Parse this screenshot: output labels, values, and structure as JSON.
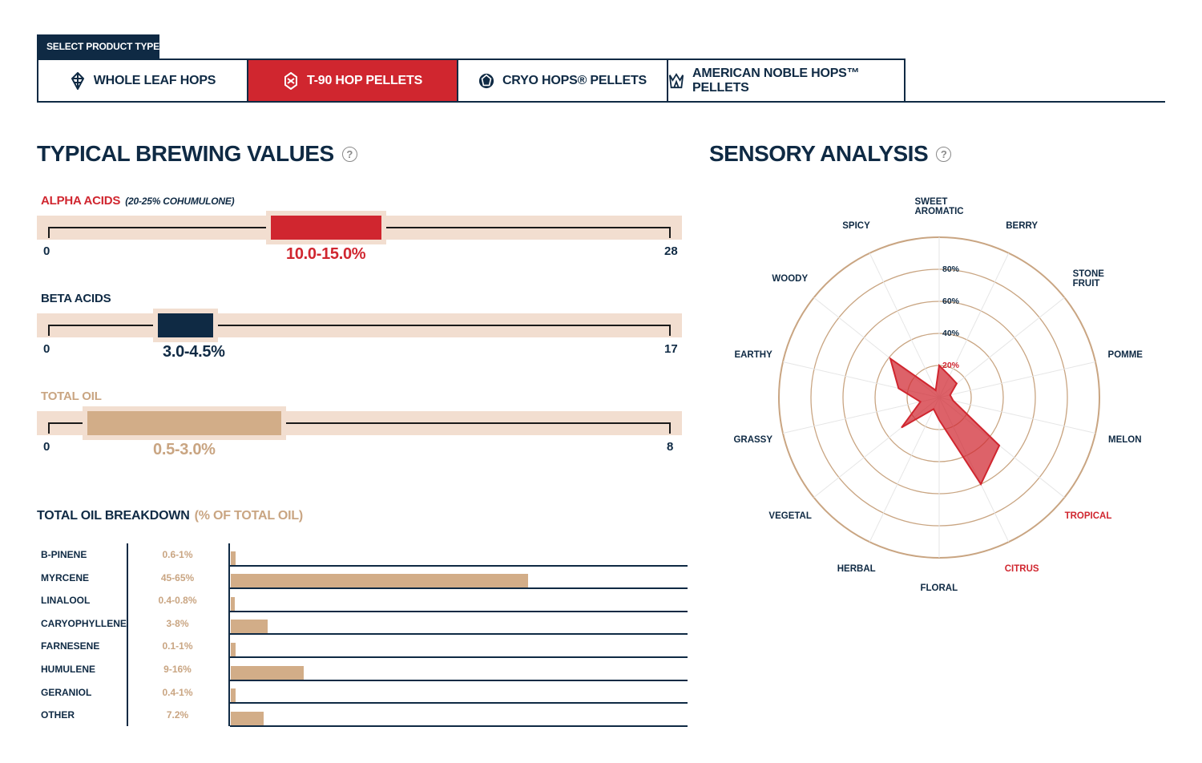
{
  "tabs": {
    "header": "SELECT PRODUCT TYPE",
    "items": [
      {
        "label": "WHOLE LEAF HOPS",
        "icon": "hop-cone-icon",
        "active": false
      },
      {
        "label": "T-90 HOP PELLETS",
        "icon": "pellet-icon",
        "active": true
      },
      {
        "label": "CRYO HOPS® PELLETS",
        "icon": "cryo-icon",
        "active": false
      },
      {
        "label": "AMERICAN NOBLE HOPS™ PELLETS",
        "icon": "noble-crown-icon",
        "active": false
      }
    ]
  },
  "brewing": {
    "title": "TYPICAL BREWING VALUES",
    "alpha": {
      "label": "ALPHA ACIDS",
      "note": "(20-25% COHUMULONE)",
      "min": "0",
      "max": "28",
      "value": "10.0-15.0%",
      "low": 10.0,
      "high": 15.0,
      "scale_max": 28,
      "color": "#d0262f"
    },
    "beta": {
      "label": "BETA ACIDS",
      "min": "0",
      "max": "17",
      "value": "3.0-4.5%",
      "low": 3.0,
      "high": 4.5,
      "scale_max": 17,
      "color": "#0f2a44"
    },
    "oil": {
      "label": "TOTAL OIL",
      "min": "0",
      "max": "8",
      "value": "0.5-3.0%",
      "low": 0.5,
      "high": 3.0,
      "scale_max": 8,
      "color": "#d2ad88"
    }
  },
  "oil_breakdown": {
    "title": "TOTAL OIL BREAKDOWN",
    "subtitle": "(% OF TOTAL OIL)",
    "rows": [
      {
        "name": "B-PINENE",
        "pct": "0.6-1%",
        "level": 1
      },
      {
        "name": "MYRCENE",
        "pct": "45-65%",
        "level": 65
      },
      {
        "name": "LINALOOL",
        "pct": "0.4-0.8%",
        "level": 0.8
      },
      {
        "name": "CARYOPHYLLENE",
        "pct": "3-8%",
        "level": 8
      },
      {
        "name": "FARNESENE",
        "pct": "0.1-1%",
        "level": 1
      },
      {
        "name": "HUMULENE",
        "pct": "9-16%",
        "level": 16
      },
      {
        "name": "GERANIOL",
        "pct": "0.4-1%",
        "level": 1
      },
      {
        "name": "OTHER",
        "pct": "7.2%",
        "level": 7.2
      }
    ]
  },
  "sensory": {
    "title": "SENSORY ANALYSIS",
    "ring_labels": [
      "20%",
      "40%",
      "60%",
      "80%"
    ],
    "attributes": [
      {
        "name": "SWEET AROMATIC",
        "lines": [
          "SWEET",
          "AROMATIC"
        ],
        "value": 20,
        "highlight": false
      },
      {
        "name": "BERRY",
        "lines": [
          "BERRY"
        ],
        "value": 15,
        "highlight": false
      },
      {
        "name": "STONE FRUIT",
        "lines": [
          "STONE",
          "FRUIT"
        ],
        "value": 14,
        "highlight": false
      },
      {
        "name": "POMME",
        "lines": [
          "POMME"
        ],
        "value": 7,
        "highlight": false
      },
      {
        "name": "MELON",
        "lines": [
          "MELON"
        ],
        "value": 9,
        "highlight": false
      },
      {
        "name": "TROPICAL",
        "lines": [
          "TROPICAL"
        ],
        "value": 48,
        "highlight": true
      },
      {
        "name": "CITRUS",
        "lines": [
          "CITRUS"
        ],
        "value": 60,
        "highlight": true
      },
      {
        "name": "FLORAL",
        "lines": [
          "FLORAL"
        ],
        "value": 14,
        "highlight": false
      },
      {
        "name": "HERBAL",
        "lines": [
          "HERBAL"
        ],
        "value": 8,
        "highlight": false
      },
      {
        "name": "VEGETAL",
        "lines": [
          "VEGETAL"
        ],
        "value": 30,
        "highlight": false
      },
      {
        "name": "GRASSY",
        "lines": [
          "GRASSY"
        ],
        "value": 12,
        "highlight": false
      },
      {
        "name": "EARTHY",
        "lines": [
          "EARTHY"
        ],
        "value": 26,
        "highlight": false
      },
      {
        "name": "WOODY",
        "lines": [
          "WOODY"
        ],
        "value": 39,
        "highlight": false
      },
      {
        "name": "SPICY",
        "lines": [
          "SPICY"
        ],
        "value": 5,
        "highlight": false
      }
    ],
    "fill_color": "#d0262f",
    "ring_color": "#c9a582"
  }
}
